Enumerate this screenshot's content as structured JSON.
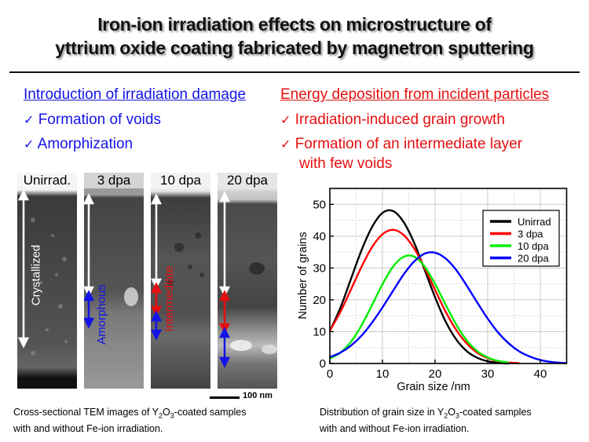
{
  "title": {
    "line1": "Iron-ion irradiation effects on microstructure of",
    "line2": "yttrium oxide coating fabricated by magnetron sputtering"
  },
  "left_column": {
    "heading": "Introduction of irradiation damage",
    "color": "#1414e6",
    "items": [
      {
        "check": "✓",
        "text": "Formation of voids"
      },
      {
        "check": "✓",
        "text": "Amorphization"
      }
    ]
  },
  "right_column": {
    "heading": "Energy deposition from incident particles",
    "color": "#e60f0f",
    "items": [
      {
        "check": "✓",
        "text": "Irradiation-induced grain growth"
      },
      {
        "check": "✓",
        "text": "Formation of an intermediate layer",
        "text2": "with few voids"
      }
    ]
  },
  "tem_panels": [
    {
      "label": "Unirrad.",
      "annotation": "Crystallized",
      "annotation_color": "#ffffff"
    },
    {
      "label": "3 dpa",
      "annotation": "Amorphous",
      "annotation_color": "#1414e6"
    },
    {
      "label": "10 dpa",
      "annotation": "Intermediate",
      "annotation_color": "#e60f0f"
    },
    {
      "label": "20 dpa"
    }
  ],
  "scale_bar": "100 nm",
  "tem_caption": {
    "pre": "Cross-sectional TEM images of Y",
    "sub1": "2",
    "mid": "O",
    "sub2": "3",
    "post": "-coated samples",
    "line2": "with and without Fe-ion irradiation."
  },
  "chart_caption": {
    "pre": "Distribution of grain size in Y",
    "sub1": "2",
    "mid": "O",
    "sub2": "3",
    "post": "-coated samples",
    "line2": "with and without Fe-ion irradiation."
  },
  "chart_data": {
    "type": "line",
    "title": "",
    "xlabel": "Grain size /nm",
    "ylabel": "Number of grains",
    "xlim": [
      0,
      45
    ],
    "ylim": [
      0,
      55
    ],
    "xticks": [
      0,
      10,
      20,
      30,
      40
    ],
    "yticks": [
      0,
      10,
      20,
      30,
      40,
      50
    ],
    "grid": true,
    "legend_position": "top-right",
    "x": [
      0,
      2,
      4,
      6,
      8,
      10,
      12,
      14,
      16,
      18,
      20,
      22,
      24,
      26,
      28,
      30,
      32,
      34,
      36,
      38,
      40,
      42,
      44,
      45
    ],
    "series": [
      {
        "name": "Unirrad",
        "color": "#000000",
        "values": [
          10.2,
          17.5,
          26.5,
          35.5,
          42.8,
          47.3,
          47.9,
          44.5,
          38.0,
          29.5,
          20.8,
          13.2,
          7.6,
          3.9,
          1.8,
          0.7,
          0.2,
          0.0,
          null,
          null,
          null,
          null,
          null,
          null
        ]
      },
      {
        "name": "3 dpa",
        "color": "#ff0000",
        "values": [
          10.3,
          16.2,
          23.2,
          30.3,
          36.5,
          40.6,
          42.0,
          40.4,
          36.2,
          30.1,
          23.1,
          16.3,
          10.6,
          6.3,
          3.4,
          1.7,
          0.7,
          0.3,
          0.1,
          null,
          null,
          null,
          null,
          null
        ]
      },
      {
        "name": "10 dpa",
        "color": "#00ee00",
        "values": [
          1.5,
          3.4,
          6.8,
          11.9,
          18.3,
          24.9,
          30.4,
          33.5,
          33.6,
          30.5,
          25.0,
          18.5,
          12.3,
          7.3,
          3.9,
          1.9,
          0.8,
          0.3,
          null,
          null,
          null,
          null,
          null,
          null
        ]
      },
      {
        "name": "20 dpa",
        "color": "#0000ff",
        "values": [
          2.0,
          3.4,
          5.6,
          8.7,
          12.8,
          17.6,
          22.8,
          27.9,
          32.0,
          34.5,
          34.8,
          33.0,
          29.4,
          24.5,
          19.2,
          14.1,
          9.7,
          6.3,
          3.8,
          2.2,
          1.1,
          0.5,
          0.2,
          0.1
        ]
      }
    ]
  }
}
